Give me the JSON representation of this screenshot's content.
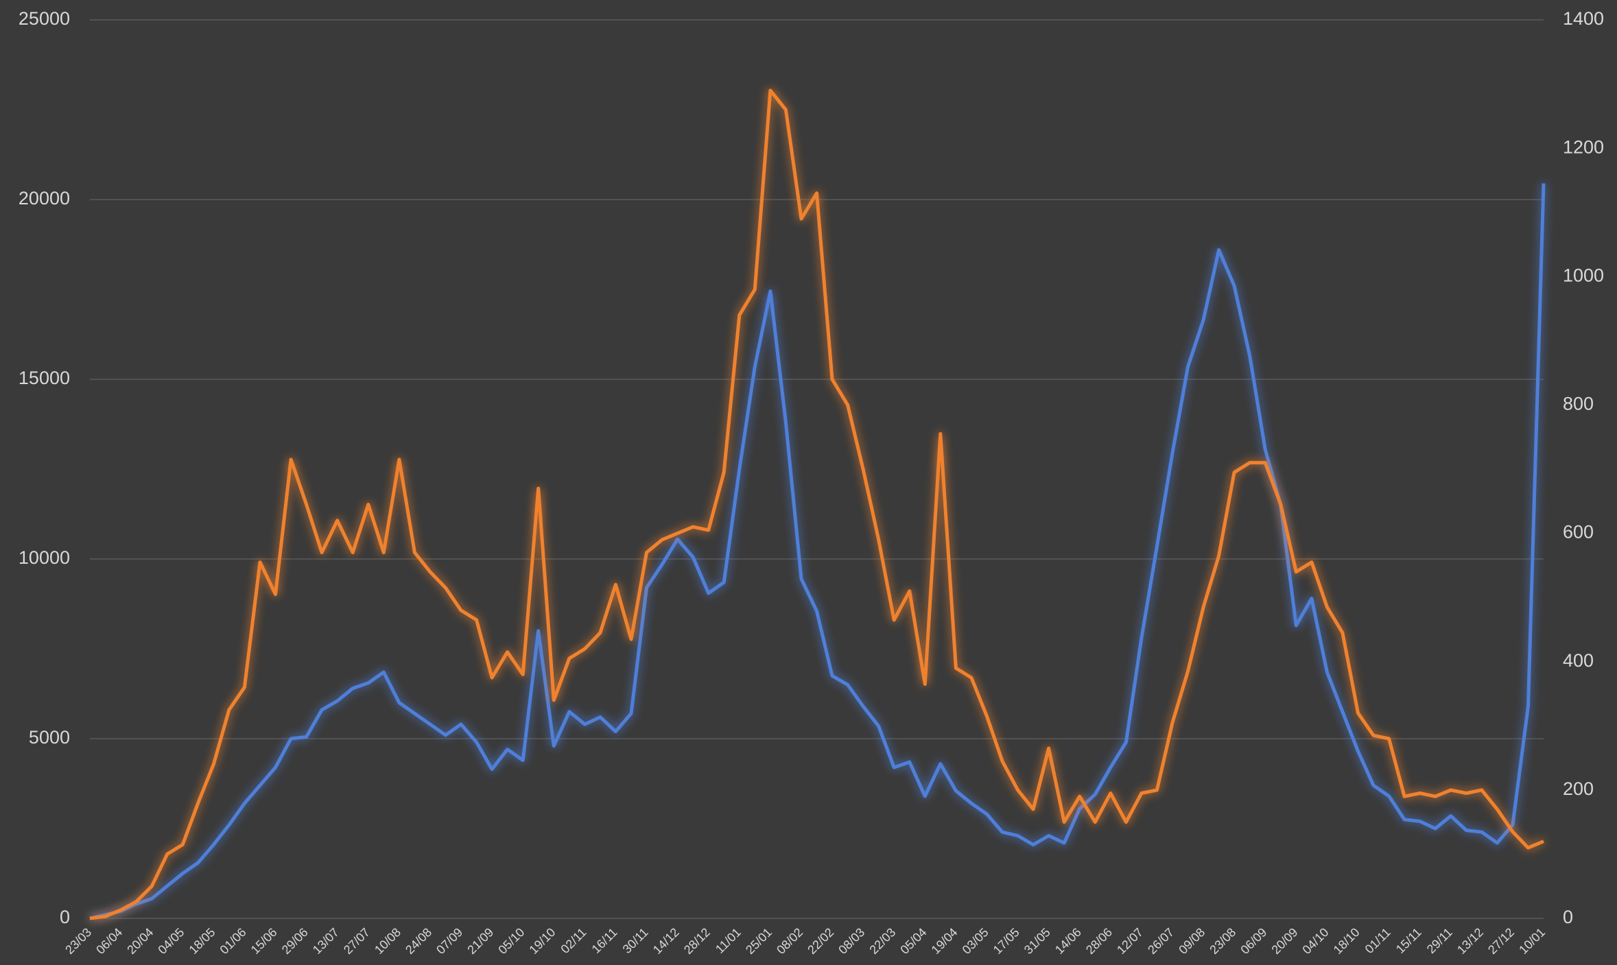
{
  "chart_data": {
    "type": "line",
    "categories": [
      "23/03",
      null,
      "06/04",
      null,
      "20/04",
      null,
      "04/05",
      null,
      "18/05",
      null,
      "01/06",
      null,
      "15/06",
      null,
      "29/06",
      null,
      "13/07",
      null,
      "27/07",
      null,
      "10/08",
      null,
      "24/08",
      null,
      "07/09",
      null,
      "21/09",
      null,
      "05/10",
      null,
      "19/10",
      null,
      "02/11",
      null,
      "16/11",
      null,
      "30/11",
      null,
      "14/12",
      null,
      "28/12",
      null,
      "11/01",
      null,
      "25/01",
      null,
      "08/02",
      null,
      "22/02",
      null,
      "08/03",
      null,
      "22/03",
      null,
      "05/04",
      null,
      "19/04",
      null,
      "03/05",
      null,
      "17/05",
      null,
      "31/05",
      null,
      "14/06",
      null,
      "28/06",
      null,
      "12/07",
      null,
      "26/07",
      null,
      "09/08",
      null,
      "23/08",
      null,
      "06/09",
      null,
      "20/09",
      null,
      "04/10",
      null,
      "18/10",
      null,
      "01/11",
      null,
      "15/11",
      null,
      "29/11",
      null,
      "13/12",
      null,
      "27/12",
      null,
      "10/01"
    ],
    "series": [
      {
        "color": "#4f7fd9",
        "axis": "y",
        "values": [
          0,
          100,
          200,
          400,
          550,
          900,
          1250,
          1550,
          2050,
          2600,
          3200,
          3700,
          4200,
          5000,
          5050,
          5800,
          6050,
          6400,
          6550,
          6850,
          6000,
          5700,
          5400,
          5100,
          5400,
          4900,
          4150,
          4700,
          4400,
          8000,
          4800,
          5750,
          5400,
          5600,
          5200,
          5700,
          9200,
          9850,
          10550,
          10050,
          9050,
          9350,
          12500,
          15350,
          17450,
          13800,
          9450,
          8550,
          6750,
          6500,
          5900,
          5350,
          4200,
          4350,
          3400,
          4300,
          3550,
          3200,
          2900,
          2400,
          2300,
          2050,
          2300,
          2100,
          3050,
          3450,
          4200,
          4900,
          7800,
          10350,
          12950,
          15350,
          16650,
          18600,
          17600,
          15650,
          13050,
          11500,
          8150,
          8900,
          6850,
          5750,
          4650,
          3700,
          3400,
          2750,
          2700,
          2500,
          2850,
          2450,
          2400,
          2100,
          2600,
          5900,
          20450
        ]
      },
      {
        "color": "#f0822e",
        "axis": "y2",
        "values": [
          0,
          3,
          13,
          26,
          50,
          100,
          115,
          180,
          240,
          325,
          360,
          555,
          505,
          715,
          645,
          570,
          620,
          570,
          645,
          570,
          715,
          570,
          540,
          515,
          480,
          465,
          375,
          415,
          380,
          670,
          340,
          405,
          420,
          445,
          520,
          435,
          570,
          590,
          600,
          610,
          605,
          695,
          940,
          980,
          1290,
          1260,
          1090,
          1130,
          840,
          800,
          700,
          590,
          465,
          510,
          365,
          755,
          390,
          375,
          315,
          245,
          200,
          170,
          265,
          150,
          190,
          150,
          195,
          150,
          195,
          200,
          305,
          385,
          485,
          565,
          695,
          710,
          710,
          645,
          540,
          555,
          485,
          445,
          320,
          285,
          280,
          190,
          195,
          190,
          200,
          195,
          200,
          170,
          135,
          110,
          120
        ]
      }
    ],
    "ylim": [
      0,
      25000
    ],
    "yticks": [
      0,
      5000,
      10000,
      15000,
      20000,
      25000
    ],
    "y2lim": [
      0,
      1400
    ],
    "y2ticks": [
      0,
      200,
      400,
      600,
      800,
      1000,
      1200,
      1400
    ],
    "grid": true
  }
}
